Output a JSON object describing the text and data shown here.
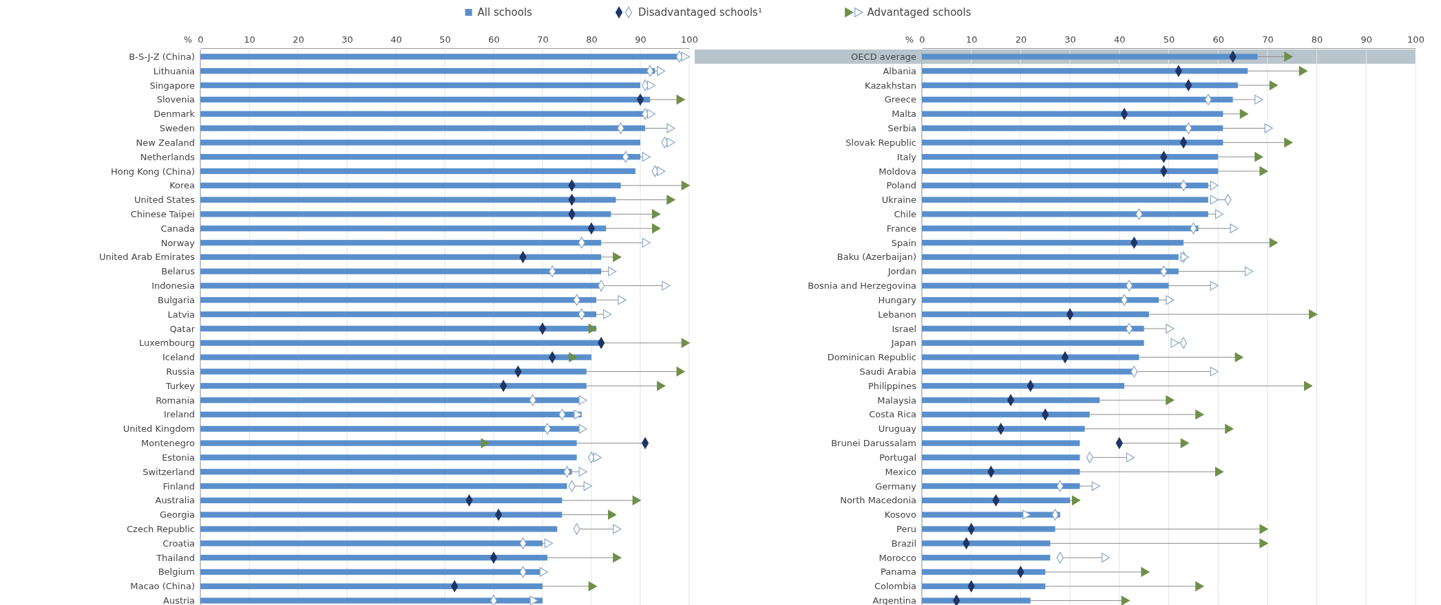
{
  "chart_data": [
    {
      "type": "bar",
      "orientation": "horizontal",
      "xlabel": "%",
      "xlim": [
        0,
        100
      ],
      "xticks": [
        0,
        10,
        20,
        30,
        40,
        50,
        60,
        70,
        80,
        90,
        100
      ],
      "grid": "x",
      "legend": "top",
      "categories": [
        "B-S-J-Z (China)",
        "Lithuania",
        "Singapore",
        "Slovenia",
        "Denmark",
        "Sweden",
        "New Zealand",
        "Netherlands",
        "Hong Kong (China)",
        "Korea",
        "United States",
        "Chinese Taipei",
        "Canada",
        "Norway",
        "United Arab Emirates",
        "Belarus",
        "Indonesia",
        "Bulgaria",
        "Latvia",
        "Qatar",
        "Luxembourg",
        "Iceland",
        "Russia",
        "Turkey",
        "Romania",
        "Ireland",
        "United Kingdom",
        "Montenegro",
        "Estonia",
        "Switzerland",
        "Finland",
        "Australia",
        "Georgia",
        "Czech Republic",
        "Croatia",
        "Thailand",
        "Belgium",
        "Macao (China)",
        "Austria"
      ],
      "series": [
        {
          "name": "All schools",
          "type": "bar",
          "color": "#5a8fcc",
          "values": [
            98,
            93,
            90,
            92,
            91,
            91,
            90,
            90,
            89,
            86,
            85,
            84,
            83,
            82,
            82,
            82,
            82,
            81,
            81,
            81,
            82,
            80,
            79,
            79,
            78,
            78,
            78,
            77,
            77,
            76,
            75,
            74,
            74,
            73,
            70,
            71,
            70,
            70,
            70
          ]
        },
        {
          "name": "Disadvantaged schools¹",
          "type": "scatter",
          "marker": "diamond",
          "color": "#1f3566",
          "colors": [
            "#ffffff",
            "#ffffff",
            "#ffffff",
            "#1f3566",
            "#ffffff",
            "#ffffff",
            "#ffffff",
            "#ffffff",
            "#ffffff",
            "#1f3566",
            "#1f3566",
            "#1f3566",
            "#1f3566",
            "#ffffff",
            "#1f3566",
            "#ffffff",
            "#ffffff",
            "#ffffff",
            "#ffffff",
            "#1f3566",
            "#1f3566",
            "#1f3566",
            "#1f3566",
            "#1f3566",
            "#ffffff",
            "#ffffff",
            "#ffffff",
            "#1f3566",
            "#ffffff",
            "#ffffff",
            "#ffffff",
            "#1f3566",
            "#1f3566",
            "#ffffff",
            "#ffffff",
            "#1f3566",
            "#ffffff",
            "#1f3566",
            "#ffffff"
          ],
          "values": [
            98,
            92,
            91,
            90,
            91,
            86,
            95,
            87,
            93,
            76,
            76,
            76,
            80,
            78,
            66,
            72,
            82,
            77,
            78,
            70,
            82,
            72,
            65,
            62,
            68,
            74,
            71,
            91,
            80,
            75,
            76,
            55,
            61,
            77,
            66,
            60,
            66,
            52,
            60
          ]
        },
        {
          "name": "Advantaged schools",
          "type": "scatter",
          "marker": "triangle",
          "color": "#6f8f4a",
          "colors": [
            "#ffffff",
            "#ffffff",
            "#ffffff",
            "#6f8f4a",
            "#ffffff",
            "#ffffff",
            "#ffffff",
            "#ffffff",
            "#ffffff",
            "#6f8f4a",
            "#6f8f4a",
            "#6f8f4a",
            "#6f8f4a",
            "#ffffff",
            "#6f8f4a",
            "#ffffff",
            "#ffffff",
            "#ffffff",
            "#ffffff",
            "#6f8f4a",
            "#6f8f4a",
            "#6f8f4a",
            "#6f8f4a",
            "#6f8f4a",
            "#ffffff",
            "#ffffff",
            "#ffffff",
            "#6f8f4a",
            "#ffffff",
            "#ffffff",
            "#ffffff",
            "#6f8f4a",
            "#6f8f4a",
            "#ffffff",
            "#ffffff",
            "#6f8f4a",
            "#ffffff",
            "#6f8f4a",
            "#ffffff"
          ],
          "values": [
            99,
            94,
            92,
            98,
            92,
            96,
            96,
            91,
            94,
            99,
            96,
            93,
            93,
            91,
            85,
            84,
            95,
            86,
            83,
            80,
            99,
            76,
            98,
            94,
            78,
            77,
            78,
            58,
            81,
            78,
            79,
            89,
            84,
            85,
            71,
            85,
            70,
            80,
            68
          ]
        }
      ]
    },
    {
      "type": "bar",
      "orientation": "horizontal",
      "xlabel": "%",
      "xlim": [
        0,
        100
      ],
      "xticks": [
        0,
        10,
        20,
        30,
        40,
        50,
        60,
        70,
        80,
        90,
        100
      ],
      "grid": "x",
      "legend": false,
      "bands": [
        {
          "axis": "y",
          "from": "OECD average",
          "to": "OECD average",
          "color": "#b9c5cc"
        }
      ],
      "categories": [
        "OECD average",
        "Albania",
        "Kazakhstan",
        "Greece",
        "Malta",
        "Serbia",
        "Slovak Republic",
        "Italy",
        "Moldova",
        "Poland",
        "Ukraine",
        "Chile",
        "France",
        "Spain",
        "Baku (Azerbaijan)",
        "Jordan",
        "Bosnia and Herzegovina",
        "Hungary",
        "Lebanon",
        "Israel",
        "Japan",
        "Dominican Republic",
        "Saudi Arabia",
        "Philippines",
        "Malaysia",
        "Costa Rica",
        "Uruguay",
        "Brunei Darussalam",
        "Portugal",
        "Mexico",
        "Germany",
        "North Macedonia",
        "Kosovo",
        "Peru",
        "Brazil",
        "Morocco",
        "Panama",
        "Colombia",
        "Argentina"
      ],
      "series": [
        {
          "type": "bar",
          "color": "#5a8fcc",
          "values": [
            68,
            66,
            64,
            63,
            61,
            61,
            61,
            60,
            60,
            58,
            58,
            58,
            56,
            53,
            52,
            52,
            50,
            48,
            46,
            45,
            45,
            44,
            43,
            41,
            36,
            34,
            33,
            32,
            32,
            32,
            32,
            30,
            28,
            27,
            26,
            26,
            25,
            25,
            22
          ]
        },
        {
          "type": "scatter",
          "marker": "diamond",
          "color": "#1f3566",
          "colors": [
            "#1f3566",
            "#1f3566",
            "#1f3566",
            "#ffffff",
            "#1f3566",
            "#ffffff",
            "#1f3566",
            "#1f3566",
            "#1f3566",
            "#ffffff",
            "#ffffff",
            "#ffffff",
            "#ffffff",
            "#1f3566",
            "#ffffff",
            "#ffffff",
            "#ffffff",
            "#ffffff",
            "#1f3566",
            "#ffffff",
            "#ffffff",
            "#1f3566",
            "#ffffff",
            "#1f3566",
            "#1f3566",
            "#1f3566",
            "#1f3566",
            "#1f3566",
            "#ffffff",
            "#1f3566",
            "#ffffff",
            "#1f3566",
            "#ffffff",
            "#1f3566",
            "#1f3566",
            "#ffffff",
            "#1f3566",
            "#1f3566",
            "#1f3566"
          ],
          "values": [
            63,
            52,
            54,
            58,
            41,
            54,
            53,
            49,
            49,
            53,
            62,
            44,
            55,
            43,
            53,
            49,
            42,
            41,
            30,
            42,
            53,
            29,
            43,
            22,
            18,
            25,
            16,
            40,
            34,
            14,
            28,
            15,
            27,
            10,
            9,
            28,
            20,
            10,
            7
          ]
        },
        {
          "type": "scatter",
          "marker": "triangle",
          "color": "#6f8f4a",
          "colors": [
            "#6f8f4a",
            "#6f8f4a",
            "#6f8f4a",
            "#ffffff",
            "#6f8f4a",
            "#ffffff",
            "#6f8f4a",
            "#6f8f4a",
            "#6f8f4a",
            "#ffffff",
            "#ffffff",
            "#ffffff",
            "#ffffff",
            "#6f8f4a",
            "#ffffff",
            "#ffffff",
            "#ffffff",
            "#ffffff",
            "#6f8f4a",
            "#ffffff",
            "#ffffff",
            "#6f8f4a",
            "#ffffff",
            "#6f8f4a",
            "#6f8f4a",
            "#6f8f4a",
            "#6f8f4a",
            "#6f8f4a",
            "#ffffff",
            "#6f8f4a",
            "#ffffff",
            "#6f8f4a",
            "#ffffff",
            "#6f8f4a",
            "#6f8f4a",
            "#ffffff",
            "#6f8f4a",
            "#6f8f4a",
            "#6f8f4a"
          ],
          "values": [
            74,
            77,
            71,
            68,
            65,
            70,
            74,
            68,
            69,
            59,
            59,
            60,
            63,
            71,
            53,
            66,
            59,
            50,
            79,
            50,
            51,
            64,
            59,
            78,
            50,
            56,
            62,
            53,
            42,
            60,
            35,
            31,
            21,
            69,
            69,
            37,
            45,
            56,
            41
          ]
        }
      ]
    }
  ]
}
